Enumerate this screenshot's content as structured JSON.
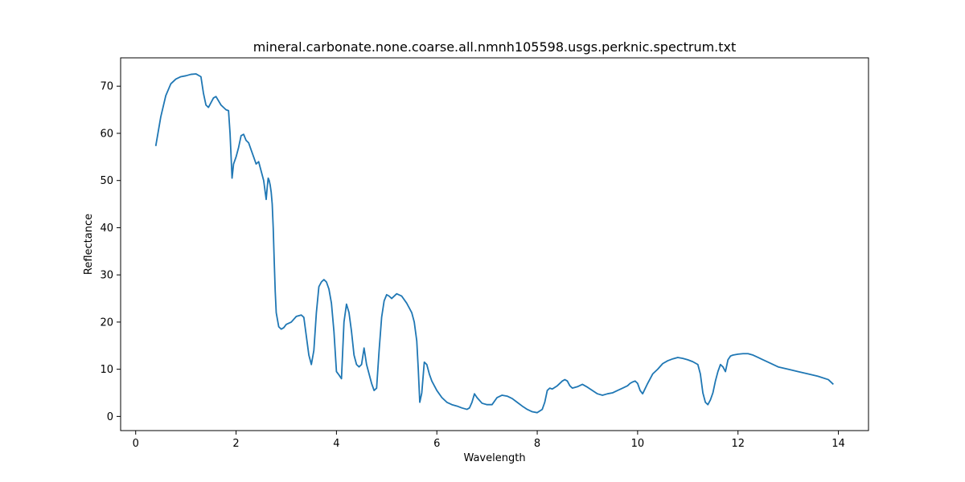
{
  "chart_data": {
    "type": "line",
    "title": "mineral.carbonate.none.coarse.all.nmnh105598.usgs.perknic.spectrum.txt",
    "xlabel": "Wavelength",
    "ylabel": "Reflectance",
    "xlim": [
      -0.3,
      14.6
    ],
    "ylim": [
      -3.0,
      76.0
    ],
    "x_ticks": [
      0,
      2,
      4,
      6,
      8,
      10,
      12,
      14
    ],
    "y_ticks": [
      0,
      10,
      20,
      30,
      40,
      50,
      60,
      70
    ],
    "grid": false,
    "legend": "none",
    "series": [
      {
        "color": "#1f77b4",
        "x": [
          0.4,
          0.5,
          0.6,
          0.7,
          0.8,
          0.9,
          1.0,
          1.1,
          1.2,
          1.3,
          1.35,
          1.4,
          1.45,
          1.5,
          1.55,
          1.6,
          1.7,
          1.8,
          1.85,
          1.88,
          1.92,
          1.95,
          2.0,
          2.05,
          2.1,
          2.15,
          2.2,
          2.25,
          2.3,
          2.35,
          2.4,
          2.45,
          2.5,
          2.55,
          2.6,
          2.62,
          2.64,
          2.66,
          2.68,
          2.7,
          2.72,
          2.74,
          2.76,
          2.78,
          2.8,
          2.85,
          2.9,
          2.95,
          3.0,
          3.1,
          3.2,
          3.3,
          3.35,
          3.4,
          3.45,
          3.5,
          3.55,
          3.6,
          3.65,
          3.7,
          3.75,
          3.8,
          3.85,
          3.9,
          3.95,
          4.0,
          4.05,
          4.1,
          4.15,
          4.2,
          4.25,
          4.3,
          4.35,
          4.4,
          4.45,
          4.5,
          4.55,
          4.6,
          4.65,
          4.7,
          4.75,
          4.8,
          4.85,
          4.9,
          4.95,
          5.0,
          5.05,
          5.1,
          5.2,
          5.3,
          5.4,
          5.5,
          5.55,
          5.6,
          5.63,
          5.66,
          5.7,
          5.75,
          5.8,
          5.85,
          5.9,
          6.0,
          6.1,
          6.2,
          6.3,
          6.4,
          6.5,
          6.6,
          6.65,
          6.7,
          6.75,
          6.8,
          6.9,
          7.0,
          7.1,
          7.2,
          7.3,
          7.4,
          7.5,
          7.6,
          7.7,
          7.8,
          7.9,
          8.0,
          8.1,
          8.15,
          8.2,
          8.25,
          8.3,
          8.4,
          8.5,
          8.55,
          8.6,
          8.65,
          8.7,
          8.8,
          8.9,
          9.0,
          9.1,
          9.2,
          9.3,
          9.4,
          9.5,
          9.6,
          9.7,
          9.8,
          9.85,
          9.9,
          9.95,
          10.0,
          10.05,
          10.1,
          10.2,
          10.3,
          10.4,
          10.5,
          10.6,
          10.7,
          10.8,
          10.9,
          11.0,
          11.1,
          11.2,
          11.25,
          11.3,
          11.35,
          11.4,
          11.45,
          11.5,
          11.55,
          11.6,
          11.65,
          11.7,
          11.75,
          11.8,
          11.85,
          11.9,
          12.0,
          12.1,
          12.2,
          12.3,
          12.4,
          12.5,
          12.6,
          12.8,
          13.0,
          13.2,
          13.4,
          13.6,
          13.8,
          13.9
        ],
        "y": [
          57.3,
          63.5,
          68.0,
          70.5,
          71.5,
          72.0,
          72.2,
          72.5,
          72.6,
          72.0,
          68.5,
          66.0,
          65.5,
          66.5,
          67.5,
          67.8,
          66.0,
          65.0,
          64.8,
          60.0,
          50.5,
          53.5,
          55.0,
          57.0,
          59.5,
          59.8,
          58.5,
          58.0,
          56.5,
          55.0,
          53.5,
          54.0,
          52.0,
          50.0,
          46.0,
          48.5,
          50.5,
          50.0,
          49.0,
          47.5,
          45.0,
          40.0,
          33.0,
          26.5,
          22.0,
          19.0,
          18.5,
          18.8,
          19.5,
          20.0,
          21.2,
          21.5,
          21.0,
          17.0,
          13.0,
          11.0,
          14.0,
          22.0,
          27.5,
          28.5,
          29.0,
          28.5,
          27.0,
          24.0,
          18.0,
          9.5,
          8.8,
          8.0,
          20.0,
          23.8,
          22.0,
          18.0,
          13.0,
          11.0,
          10.5,
          11.0,
          14.5,
          11.0,
          9.0,
          7.0,
          5.5,
          6.0,
          14.0,
          21.0,
          24.5,
          25.8,
          25.5,
          25.0,
          26.0,
          25.5,
          24.0,
          22.0,
          20.0,
          16.0,
          10.0,
          3.0,
          5.0,
          11.5,
          11.0,
          9.0,
          7.5,
          5.5,
          4.0,
          3.0,
          2.5,
          2.2,
          1.8,
          1.5,
          1.8,
          3.0,
          4.8,
          4.0,
          2.8,
          2.5,
          2.5,
          4.0,
          4.5,
          4.3,
          3.8,
          3.0,
          2.2,
          1.5,
          1.0,
          0.8,
          1.5,
          3.0,
          5.5,
          6.0,
          5.8,
          6.5,
          7.5,
          7.8,
          7.5,
          6.5,
          6.0,
          6.3,
          6.8,
          6.2,
          5.5,
          4.8,
          4.5,
          4.8,
          5.0,
          5.5,
          6.0,
          6.5,
          7.0,
          7.3,
          7.5,
          7.0,
          5.5,
          4.8,
          7.0,
          9.0,
          10.0,
          11.2,
          11.8,
          12.2,
          12.5,
          12.3,
          12.0,
          11.6,
          11.0,
          9.0,
          5.0,
          3.0,
          2.5,
          3.5,
          5.0,
          7.5,
          9.5,
          11.0,
          10.5,
          9.5,
          12.0,
          12.8,
          13.0,
          13.2,
          13.3,
          13.3,
          13.0,
          12.5,
          12.0,
          11.5,
          10.5,
          10.0,
          9.5,
          9.0,
          8.5,
          7.8,
          6.8
        ]
      }
    ]
  }
}
